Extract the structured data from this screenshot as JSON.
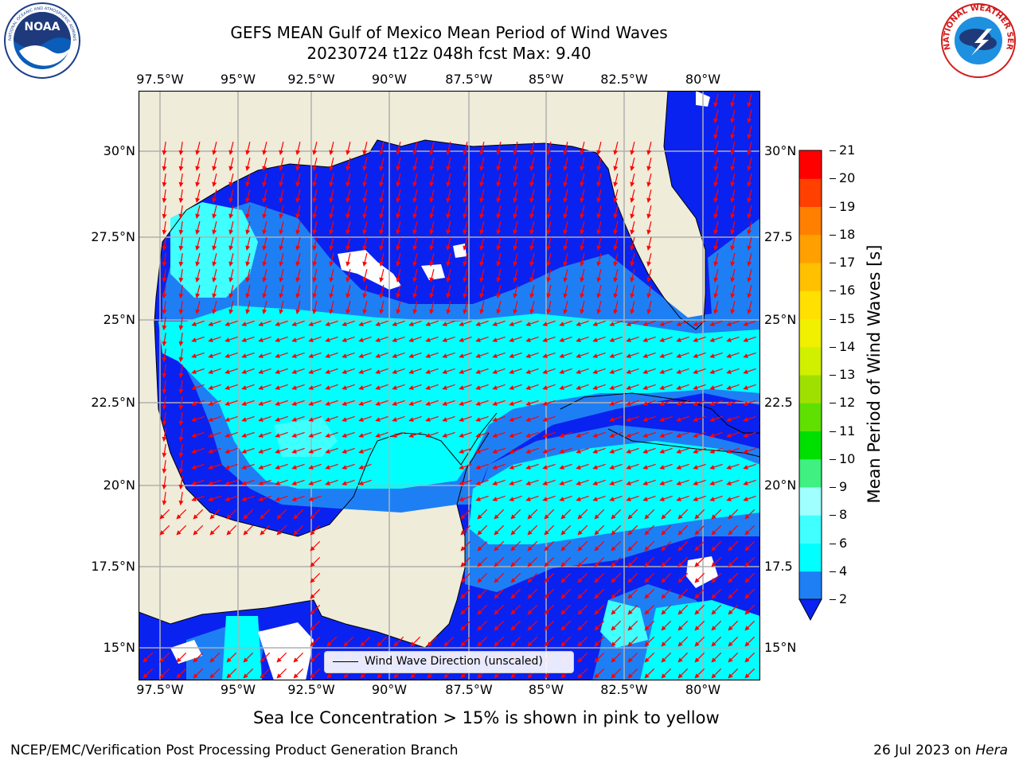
{
  "title": {
    "line1": "GEFS MEAN Gulf of Mexico Mean Period of Wind Waves",
    "line2": "20230724 t12z 048h fcst   Max: 9.40"
  },
  "logos": {
    "left": {
      "name": "NOAA",
      "ring_text": "NATIONAL OCEANIC AND ATMOSPHERIC ADMINISTRATION · U.S. DEPARTMENT OF COMMERCE"
    },
    "right": {
      "ring_text": "NATIONAL WEATHER SERVICE"
    }
  },
  "map": {
    "lon_labels": [
      "97.5°W",
      "95°W",
      "92.5°W",
      "90°W",
      "87.5°W",
      "85°W",
      "82.5°W",
      "80°W"
    ],
    "lat_labels_left": [
      "30°N",
      "27.5°N",
      "25°N",
      "22.5°N",
      "20°N",
      "17.5°N",
      "15°N"
    ],
    "lat_labels_right": [
      "30°N",
      "27.5",
      "25°N",
      "22.5",
      "20°N",
      "17.5",
      "15°N"
    ],
    "land_color": "#efecd9",
    "grid_color": "#b0b0b0",
    "arrow_color": "#ff0000",
    "legend_text": "Wind Wave Direction (unscaled)"
  },
  "colorbar": {
    "label": "Mean Period of Wind Waves [s]",
    "ticks": [
      "2",
      "4",
      "6",
      "8",
      "9",
      "10",
      "11",
      "12",
      "13",
      "14",
      "15",
      "16",
      "17",
      "18",
      "19",
      "20",
      "21"
    ],
    "colors": [
      "#0a22f0",
      "#1e7ff5",
      "#00ffff",
      "#40ffff",
      "#a0ffff",
      "#40f080",
      "#00e000",
      "#60e000",
      "#a0e000",
      "#d0f000",
      "#f0f000",
      "#ffe000",
      "#ffc000",
      "#ffa000",
      "#ff8000",
      "#ff4000",
      "#ff0000"
    ]
  },
  "ice_note": "Sea Ice Concentration > 15% is shown in pink to yellow",
  "footer": {
    "left": "NCEP/EMC/Verification Post Processing Product Generation Branch",
    "right_date": "26 Jul 2023 on ",
    "right_host": "Hera"
  }
}
